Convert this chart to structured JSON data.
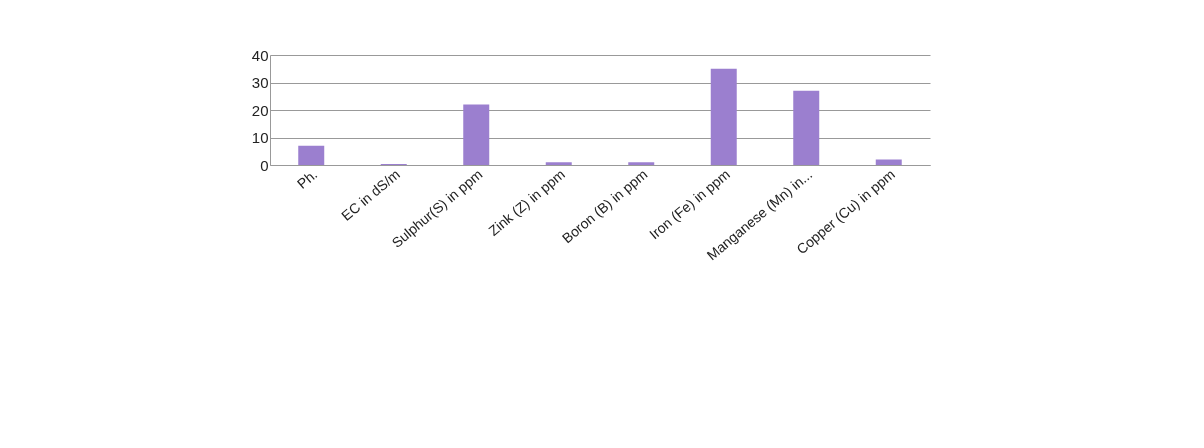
{
  "chart_data": {
    "type": "bar",
    "categories": [
      "Ph.",
      "EC in dS/m",
      "Sulphur(S) in ppm",
      "Zink (Z) in ppm",
      "Boron (B) in ppm",
      "Iron (Fe) in ppm",
      "Manganese (Mn) in...",
      "Copper (Cu) in ppm"
    ],
    "values": [
      7,
      0.4,
      22,
      1,
      1,
      35,
      27,
      2
    ],
    "color": "#9b7fcf",
    "ylim": [
      0,
      40
    ],
    "yticks": [
      0,
      10,
      20,
      30,
      40
    ],
    "grid": "y"
  }
}
